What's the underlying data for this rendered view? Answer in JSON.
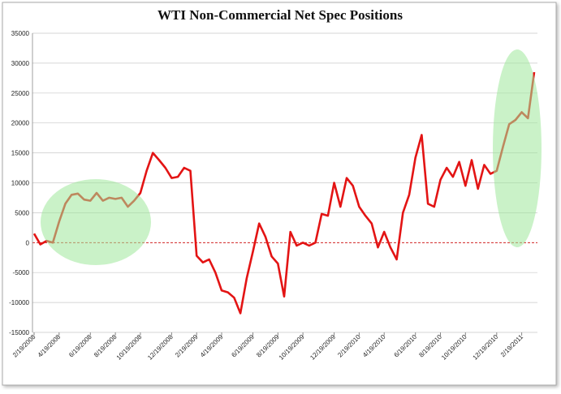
{
  "chart_data": {
    "type": "line",
    "title": "WTI Non-Commercial Net Spec Positions",
    "categories": [
      "2/19/2008",
      null,
      null,
      null,
      "4/19/2008",
      null,
      null,
      null,
      null,
      "6/19/2008",
      null,
      null,
      null,
      "8/19/2008",
      null,
      null,
      null,
      "10/19/2008",
      null,
      null,
      null,
      null,
      "12/19/2008",
      null,
      null,
      null,
      "2/19/2009",
      null,
      null,
      null,
      "4/19/2009",
      null,
      null,
      null,
      null,
      "6/19/2009",
      null,
      null,
      null,
      "8/19/2009",
      null,
      null,
      null,
      "10/19/2009",
      null,
      null,
      null,
      null,
      "12/19/2009",
      null,
      null,
      null,
      "2/19/2010",
      null,
      null,
      null,
      "4/19/2010",
      null,
      null,
      null,
      null,
      "6/19/2010",
      null,
      null,
      null,
      "8/19/2010",
      null,
      null,
      null,
      "10/19/2010",
      null,
      null,
      null,
      null,
      "12/19/2010",
      null,
      null,
      null,
      "2/19/2011",
      null,
      null
    ],
    "series": [
      {
        "color": "#e31414",
        "values": [
          1500,
          -300,
          300,
          0,
          3500,
          6500,
          8000,
          8200,
          7200,
          7000,
          8300,
          7000,
          7500,
          7300,
          7500,
          6000,
          7000,
          8300,
          12000,
          15000,
          13800,
          12500,
          10800,
          11000,
          12500,
          12000,
          -2200,
          -3300,
          -2800,
          -5000,
          -8000,
          -8300,
          -9200,
          -11800,
          -6000,
          -1500,
          3200,
          1000,
          -2300,
          -3500,
          -9000,
          1800,
          -500,
          0,
          -500,
          0,
          4800,
          4500,
          10000,
          6000,
          10800,
          9500,
          6000,
          4500,
          3200,
          -800,
          1800,
          -800,
          -2800,
          5000,
          8000,
          14200,
          18000,
          6500,
          6000,
          10500,
          12500,
          11000,
          13500,
          9500,
          13800,
          9000,
          13000,
          11500,
          12000,
          16000,
          19800,
          20500,
          21800,
          20800,
          28500
        ]
      }
    ],
    "ylim": [
      -15000,
      35000
    ],
    "yticks": [
      -15000,
      -10000,
      -5000,
      0,
      5000,
      10000,
      15000,
      20000,
      25000,
      30000,
      35000
    ],
    "grid": true
  }
}
